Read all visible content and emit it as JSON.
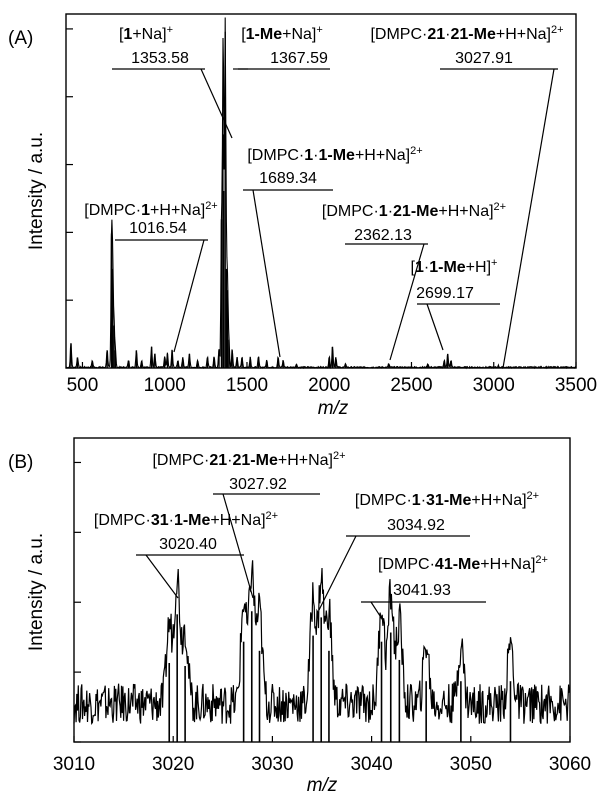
{
  "chart_data": [
    {
      "type": "line",
      "panel_label": "(A)",
      "xlabel": "m/z",
      "ylabel": "Intensity / a.u.",
      "xlim": [
        400,
        3500
      ],
      "xticks": [
        500,
        1000,
        1500,
        2000,
        2500,
        3000,
        3500
      ],
      "ylim": [
        0,
        1
      ],
      "yticks_labeled": false,
      "grid": false,
      "peaks": [
        {
          "x": 430,
          "y": 0.07
        },
        {
          "x": 470,
          "y": 0.03
        },
        {
          "x": 560,
          "y": 0.02
        },
        {
          "x": 650,
          "y": 0.05
        },
        {
          "x": 677,
          "y": 0.38
        },
        {
          "x": 684,
          "y": 0.28
        },
        {
          "x": 692,
          "y": 0.12
        },
        {
          "x": 700,
          "y": 0.05
        },
        {
          "x": 780,
          "y": 0.02
        },
        {
          "x": 828,
          "y": 0.05
        },
        {
          "x": 860,
          "y": 0.02
        },
        {
          "x": 920,
          "y": 0.06
        },
        {
          "x": 940,
          "y": 0.04
        },
        {
          "x": 1000,
          "y": 0.03
        },
        {
          "x": 1016.54,
          "y": 0.04
        },
        {
          "x": 1045,
          "y": 0.05
        },
        {
          "x": 1080,
          "y": 0.02
        },
        {
          "x": 1110,
          "y": 0.03
        },
        {
          "x": 1150,
          "y": 0.04
        },
        {
          "x": 1200,
          "y": 0.02
        },
        {
          "x": 1260,
          "y": 0.03
        },
        {
          "x": 1300,
          "y": 0.03
        },
        {
          "x": 1330,
          "y": 0.05
        },
        {
          "x": 1345,
          "y": 0.42
        },
        {
          "x": 1353.58,
          "y": 0.66
        },
        {
          "x": 1358,
          "y": 0.5
        },
        {
          "x": 1367.59,
          "y": 0.95
        },
        {
          "x": 1375,
          "y": 0.28
        },
        {
          "x": 1382,
          "y": 0.22
        },
        {
          "x": 1390,
          "y": 0.08
        },
        {
          "x": 1410,
          "y": 0.05
        },
        {
          "x": 1440,
          "y": 0.03
        },
        {
          "x": 1470,
          "y": 0.03
        },
        {
          "x": 1520,
          "y": 0.03
        },
        {
          "x": 1570,
          "y": 0.03
        },
        {
          "x": 1620,
          "y": 0.02
        },
        {
          "x": 1689.34,
          "y": 0.03
        },
        {
          "x": 1720,
          "y": 0.02
        },
        {
          "x": 1800,
          "y": 0.01
        },
        {
          "x": 2000,
          "y": 0.03
        },
        {
          "x": 2020,
          "y": 0.06
        },
        {
          "x": 2040,
          "y": 0.03
        },
        {
          "x": 2100,
          "y": 0.01
        },
        {
          "x": 2362.13,
          "y": 0.01
        },
        {
          "x": 2600,
          "y": 0.01
        },
        {
          "x": 2699.17,
          "y": 0.02
        },
        {
          "x": 2720,
          "y": 0.04
        },
        {
          "x": 2740,
          "y": 0.02
        },
        {
          "x": 3027.91,
          "y": 0.005
        }
      ],
      "annotations": [
        {
          "label": "[1+Na]+",
          "value": "1353.58",
          "peak_x": 1353.58
        },
        {
          "label": "[1-Me+Na]+",
          "value": "1367.59",
          "peak_x": 1367.59
        },
        {
          "label": "[DMPC·21·21-Me+H+Na]2+",
          "value": "3027.91",
          "peak_x": 3027.91
        },
        {
          "label": "[DMPC·1·1-Me+H+Na]2+",
          "value": "1689.34",
          "peak_x": 1689.34
        },
        {
          "label": "[DMPC·1+H+Na]2+",
          "value": "1016.54",
          "peak_x": 1016.54
        },
        {
          "label": "[DMPC·1·21-Me+H+Na]2+",
          "value": "2362.13",
          "peak_x": 2362.13
        },
        {
          "label": "[1·1-Me+H]+",
          "value": "2699.17",
          "peak_x": 2699.17
        }
      ]
    },
    {
      "type": "line",
      "panel_label": "(B)",
      "xlabel": "m/z",
      "ylabel": "Intensity / a.u.",
      "xlim": [
        3010,
        3060
      ],
      "xticks": [
        3010,
        3020,
        3030,
        3040,
        3050,
        3060
      ],
      "ylim": [
        0,
        1
      ],
      "yticks_labeled": false,
      "grid": false,
      "peaks": [
        {
          "x": 3019.6,
          "y": 0.26
        },
        {
          "x": 3020.4,
          "y": 0.42
        },
        {
          "x": 3021.2,
          "y": 0.25
        },
        {
          "x": 3027.1,
          "y": 0.33
        },
        {
          "x": 3027.92,
          "y": 0.43
        },
        {
          "x": 3028.7,
          "y": 0.3
        },
        {
          "x": 3034.1,
          "y": 0.35
        },
        {
          "x": 3034.92,
          "y": 0.41
        },
        {
          "x": 3035.7,
          "y": 0.3
        },
        {
          "x": 3041.0,
          "y": 0.33
        },
        {
          "x": 3041.93,
          "y": 0.36
        },
        {
          "x": 3042.8,
          "y": 0.27
        },
        {
          "x": 3045.5,
          "y": 0.2
        },
        {
          "x": 3049.0,
          "y": 0.2
        },
        {
          "x": 3054.0,
          "y": 0.2
        }
      ],
      "annotations": [
        {
          "label": "[DMPC·21·21-Me+H+Na]2+",
          "value": "3027.92",
          "peak_x": 3027.92
        },
        {
          "label": "[DMPC·1·31-Me+H+Na]2+",
          "value": "3034.92",
          "peak_x": 3034.92
        },
        {
          "label": "[DMPC·31·1-Me+H+Na]2+",
          "value": "3020.40",
          "peak_x": 3020.4
        },
        {
          "label": "[DMPC·41-Me+H+Na]2+",
          "value": "3041.93",
          "peak_x": 3041.93
        }
      ]
    }
  ]
}
